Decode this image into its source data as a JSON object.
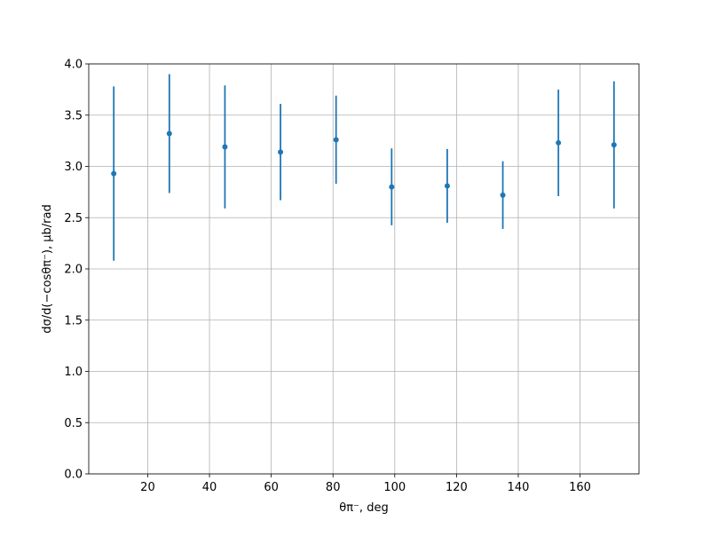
{
  "chart_data": {
    "type": "errorbar",
    "x_label": "θπ⁻, deg",
    "y_label": "dσ/d(−cosθπ⁻), μb/rad",
    "x": [
      9,
      27,
      45,
      63,
      81,
      99,
      117,
      135,
      153,
      171
    ],
    "series": [
      {
        "color": "#1f77b4",
        "values": [
          2.93,
          3.32,
          3.19,
          3.14,
          3.26,
          2.8,
          2.81,
          2.72,
          3.23,
          3.21
        ],
        "errors": [
          0.85,
          0.58,
          0.6,
          0.47,
          0.43,
          0.375,
          0.36,
          0.33,
          0.52,
          0.62
        ]
      }
    ],
    "xlim": [
      0.9,
      179.1
    ],
    "xticks": [
      20,
      40,
      60,
      80,
      100,
      120,
      140,
      160
    ],
    "ylim": [
      0,
      4
    ],
    "yticks": [
      {
        "value": 0,
        "label": "0.0"
      },
      {
        "value": 0.5,
        "label": "0.5"
      },
      {
        "value": 1,
        "label": "1.0"
      },
      {
        "value": 1.5,
        "label": "1.5"
      },
      {
        "value": 2,
        "label": "2.0"
      },
      {
        "value": 2.5,
        "label": "2.5"
      },
      {
        "value": 3,
        "label": "3.0"
      },
      {
        "value": 3.5,
        "label": "3.5"
      },
      {
        "value": 4,
        "label": "4.0"
      }
    ],
    "grid": true
  }
}
